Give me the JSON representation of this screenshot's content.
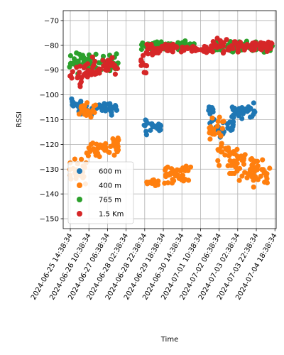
{
  "chart_data": {
    "type": "scatter",
    "title": "",
    "xlabel": "Time",
    "ylabel": "RSSI",
    "ylim": [
      -154,
      -66
    ],
    "xlim": [
      "2024-06-25 07:00:00",
      "2024-07-04 20:00:00"
    ],
    "y_ticks": [
      -150,
      -140,
      -130,
      -120,
      -110,
      -100,
      -90,
      -80,
      -70
    ],
    "x_ticks": [
      "2024-06-25 14:38:34",
      "2024-06-26 10:38:34",
      "2024-06-27 06:38:34",
      "2024-06-28 02:38:34",
      "2024-06-28 22:38:34",
      "2024-06-29 18:38:34",
      "2024-06-30 14:38:34",
      "2024-07-01 10:38:34",
      "2024-07-02 06:38:34",
      "2024-07-03 02:38:34",
      "2024-07-03 22:38:34",
      "2024-07-04 18:38:34"
    ],
    "grid": true,
    "legend_placement": "lower-left",
    "series": [
      {
        "name": "600 m",
        "color": "#1f77b4",
        "clusters": [
          {
            "t0": "2024-06-25 14:00",
            "t1": "2024-06-26 02:00",
            "y0": -108,
            "y1": -100
          },
          {
            "t0": "2024-06-26 02:00",
            "t1": "2024-06-26 14:00",
            "y0": -110,
            "y1": -102
          },
          {
            "t0": "2024-06-26 14:00",
            "t1": "2024-06-27 06:00",
            "y0": -108,
            "y1": -103
          },
          {
            "t0": "2024-06-27 06:00",
            "t1": "2024-06-27 19:00",
            "y0": -109,
            "y1": -102
          },
          {
            "t0": "2024-06-28 20:00",
            "t1": "2024-06-29 02:00",
            "y0": -117,
            "y1": -106
          },
          {
            "t0": "2024-06-29 02:00",
            "t1": "2024-06-29 16:00",
            "y0": -115,
            "y1": -111
          },
          {
            "t0": "2024-07-01 19:00",
            "t1": "2024-07-02 03:00",
            "y0": -113,
            "y1": -100
          },
          {
            "t0": "2024-07-02 03:00",
            "t1": "2024-07-02 22:00",
            "y0": -118,
            "y1": -109
          },
          {
            "t0": "2024-07-02 20:00",
            "t1": "2024-07-03 22:00",
            "y0": -110,
            "y1": -103
          }
        ]
      },
      {
        "name": "400 m",
        "color": "#ff7f0e",
        "clusters": [
          {
            "t0": "2024-06-25 14:00",
            "t1": "2024-06-26 08:00",
            "y0": -137,
            "y1": -124
          },
          {
            "t0": "2024-06-26 08:00",
            "t1": "2024-06-26 20:00",
            "y0": -126,
            "y1": -118
          },
          {
            "t0": "2024-06-26 00:00",
            "t1": "2024-06-26 18:00",
            "y0": -111,
            "y1": -103
          },
          {
            "t0": "2024-06-26 20:00",
            "t1": "2024-06-27 20:00",
            "y0": -126,
            "y1": -116
          },
          {
            "t0": "2024-06-29 00:00",
            "t1": "2024-06-29 14:00",
            "y0": -137,
            "y1": -133
          },
          {
            "t0": "2024-06-29 20:00",
            "t1": "2024-07-01 02:00",
            "y0": -136,
            "y1": -128
          },
          {
            "t0": "2024-07-01 19:00",
            "t1": "2024-07-02 12:00",
            "y0": -120,
            "y1": -108
          },
          {
            "t0": "2024-07-02 04:00",
            "t1": "2024-07-03 04:00",
            "y0": -130,
            "y1": -118
          },
          {
            "t0": "2024-07-02 18:00",
            "t1": "2024-07-03 22:00",
            "y0": -136,
            "y1": -122
          },
          {
            "t0": "2024-07-03 18:00",
            "t1": "2024-07-04 14:00",
            "y0": -138,
            "y1": -125
          }
        ]
      },
      {
        "name": "765 m",
        "color": "#2ca02c",
        "clusters": [
          {
            "t0": "2024-06-25 13:00",
            "t1": "2024-06-27 18:00",
            "y0": -92,
            "y1": -82
          },
          {
            "t0": "2024-06-28 19:00",
            "t1": "2024-07-01 04:00",
            "y0": -82,
            "y1": -78
          },
          {
            "t0": "2024-07-02 00:00",
            "t1": "2024-07-04 16:00",
            "y0": -83,
            "y1": -78
          }
        ]
      },
      {
        "name": "1.5 Km",
        "color": "#d62728",
        "clusters": [
          {
            "t0": "2024-06-25 14:00",
            "t1": "2024-06-26 12:00",
            "y0": -97,
            "y1": -86
          },
          {
            "t0": "2024-06-26 12:00",
            "t1": "2024-06-27 18:00",
            "y0": -93,
            "y1": -84
          },
          {
            "t0": "2024-06-28 18:00",
            "t1": "2024-06-29 02:00",
            "y0": -92,
            "y1": -83
          },
          {
            "t0": "2024-06-29 00:00",
            "t1": "2024-06-30 14:00",
            "y0": -84,
            "y1": -79
          },
          {
            "t0": "2024-06-30 14:00",
            "t1": "2024-07-02 00:00",
            "y0": -83,
            "y1": -80
          },
          {
            "t0": "2024-07-02 00:00",
            "t1": "2024-07-03 10:00",
            "y0": -84,
            "y1": -77
          },
          {
            "t0": "2024-07-03 10:00",
            "t1": "2024-07-04 16:00",
            "y0": -83,
            "y1": -78
          }
        ]
      }
    ]
  }
}
